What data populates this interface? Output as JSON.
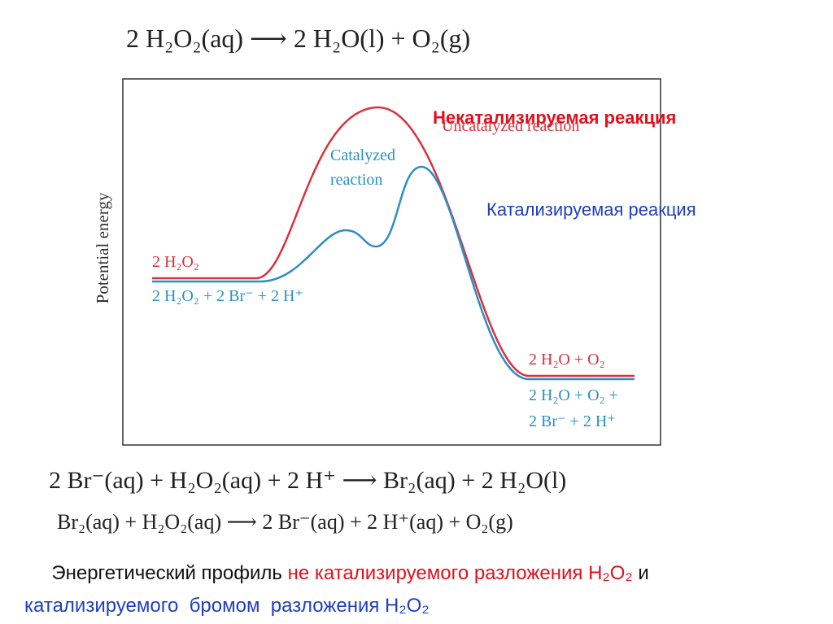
{
  "equation_top": "2 H₂O₂(aq) ⟶ 2 H₂O(l) + O₂(g)",
  "diagram": {
    "y_axis_label": "Potential energy",
    "uncatalyzed_label_ru": "Некатализируемая реакция",
    "uncatalyzed_label": "Uncatalyzed reaction",
    "catalyzed_label": [
      "Catalyzed",
      "reaction"
    ],
    "catalyzed_label_ru": "Катализируемая реакция",
    "reactant_uncatalyzed": "2 H₂O₂",
    "reactant_catalyzed": "2 H₂O₂ + 2 Br⁻ + 2 H⁺",
    "product_uncatalyzed": "2 H₂O + O₂",
    "product_catalyzed": [
      "2 H₂O + O₂ +",
      "2 Br⁻ + 2 H⁺"
    ]
  },
  "equations_bottom": [
    "2 Br⁻(aq) + H₂O₂(aq) + 2 H⁺ ⟶ Br₂(aq) + 2 H₂O(l)",
    "Br₂(aq) + H₂O₂(aq) ⟶ 2 Br⁻(aq) + 2 H⁺(aq) + O₂(g)"
  ],
  "caption": {
    "line1_start": "Энергетический профиль ",
    "line1_red": "не катализируемого разложения H₂O₂",
    "line1_end": " и",
    "line2": "катализируемого  бромом  разложения H₂O₂"
  }
}
